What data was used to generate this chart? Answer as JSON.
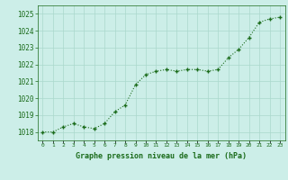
{
  "hours": [
    0,
    1,
    2,
    3,
    4,
    5,
    6,
    7,
    8,
    9,
    10,
    11,
    12,
    13,
    14,
    15,
    16,
    17,
    18,
    19,
    20,
    21,
    22,
    23
  ],
  "pressure": [
    1018.0,
    1018.0,
    1018.3,
    1018.5,
    1018.3,
    1018.2,
    1018.5,
    1019.2,
    1019.6,
    1020.8,
    1021.4,
    1021.6,
    1021.7,
    1021.6,
    1021.7,
    1021.7,
    1021.6,
    1021.7,
    1022.4,
    1022.9,
    1023.6,
    1024.5,
    1024.7,
    1024.8
  ],
  "ylim": [
    1017.5,
    1025.5
  ],
  "yticks": [
    1018,
    1019,
    1020,
    1021,
    1022,
    1023,
    1024,
    1025
  ],
  "bg_color": "#cceee8",
  "grid_color": "#aad8cc",
  "line_color": "#1a6b1a",
  "marker_color": "#1a6b1a",
  "xlabel": "Graphe pression niveau de la mer (hPa)",
  "xlabel_color": "#1a6b1a"
}
